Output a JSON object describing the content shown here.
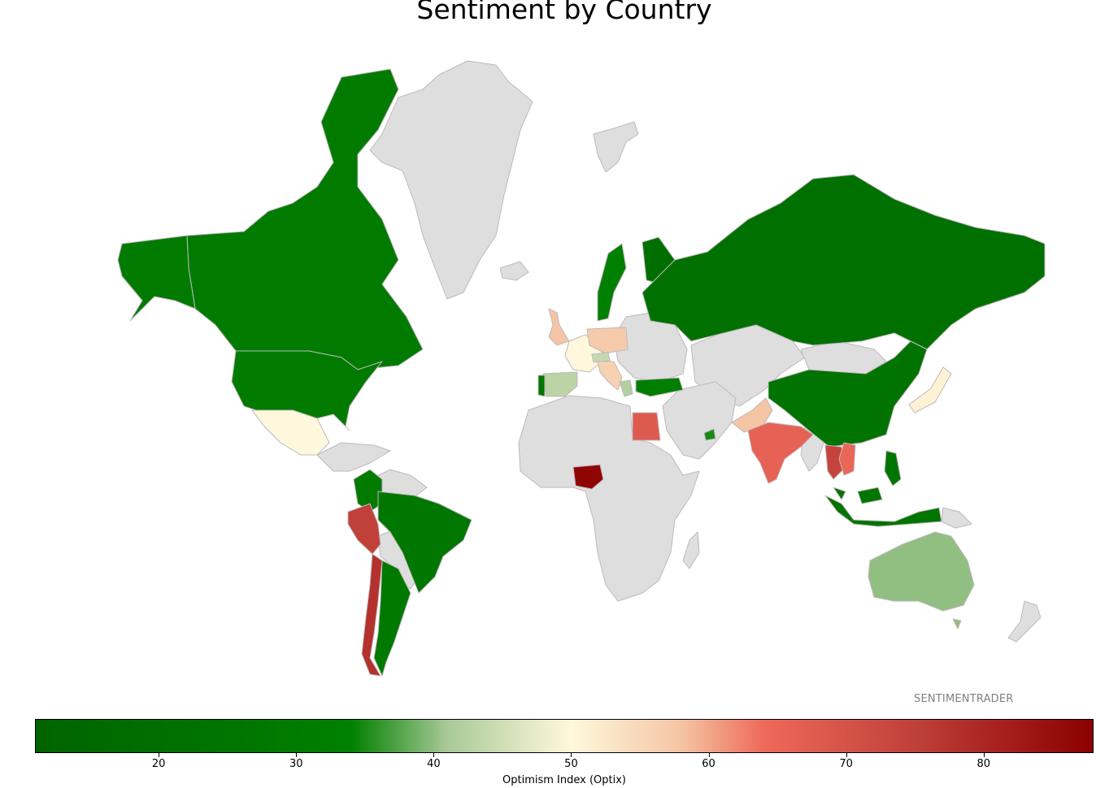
{
  "title": "Sentiment by Country",
  "watermark": "SENTIMENTRADER",
  "colorbar": {
    "label": "Optimism Index (Optix)",
    "min": 11,
    "max": 88,
    "ticks": [
      "20",
      "30",
      "40",
      "50",
      "60",
      "70",
      "80"
    ],
    "tick_values": [
      20,
      30,
      40,
      50,
      60,
      70,
      80
    ],
    "stops": [
      {
        "value": 11,
        "color": "#006400"
      },
      {
        "value": 34,
        "color": "#008000"
      },
      {
        "value": 41,
        "color": "#a9c997"
      },
      {
        "value": 50,
        "color": "#fff8dc"
      },
      {
        "value": 58,
        "color": "#f4c5a4"
      },
      {
        "value": 64,
        "color": "#ee6a5a"
      },
      {
        "value": 75,
        "color": "#c0403a"
      },
      {
        "value": 88,
        "color": "#8b0000"
      }
    ]
  },
  "nodata_color": "#dedede",
  "chart_data": {
    "type": "choropleth",
    "metric": "Optimism Index (Optix)",
    "countries": [
      {
        "name": "Canada",
        "value": 30
      },
      {
        "name": "United States",
        "value": 30
      },
      {
        "name": "Mexico",
        "value": 50
      },
      {
        "name": "Colombia",
        "value": 30
      },
      {
        "name": "Peru",
        "value": 75
      },
      {
        "name": "Brazil",
        "value": 27
      },
      {
        "name": "Chile",
        "value": 78
      },
      {
        "name": "Argentina",
        "value": 28
      },
      {
        "name": "United Kingdom",
        "value": 58
      },
      {
        "name": "Spain",
        "value": 43
      },
      {
        "name": "Portugal",
        "value": 27
      },
      {
        "name": "France",
        "value": 50
      },
      {
        "name": "Germany",
        "value": 57
      },
      {
        "name": "Switzerland",
        "value": 44
      },
      {
        "name": "Italy",
        "value": 56
      },
      {
        "name": "Sweden",
        "value": 33
      },
      {
        "name": "Norway",
        "value": 33
      },
      {
        "name": "Finland",
        "value": 20
      },
      {
        "name": "Russia",
        "value": 22
      },
      {
        "name": "Turkey",
        "value": 32
      },
      {
        "name": "Greece",
        "value": 42
      },
      {
        "name": "Egypt",
        "value": 68
      },
      {
        "name": "Nigeria",
        "value": 87
      },
      {
        "name": "Saudi Arabia",
        "value": null
      },
      {
        "name": "United Arab Emirates",
        "value": 35
      },
      {
        "name": "Pakistan",
        "value": 58
      },
      {
        "name": "India",
        "value": 66
      },
      {
        "name": "China",
        "value": 23
      },
      {
        "name": "Japan",
        "value": 51
      },
      {
        "name": "Thailand",
        "value": 74
      },
      {
        "name": "Vietnam",
        "value": 65
      },
      {
        "name": "Malaysia",
        "value": 25
      },
      {
        "name": "Indonesia",
        "value": 25
      },
      {
        "name": "Philippines",
        "value": 25
      },
      {
        "name": "Australia",
        "value": 40
      }
    ]
  }
}
